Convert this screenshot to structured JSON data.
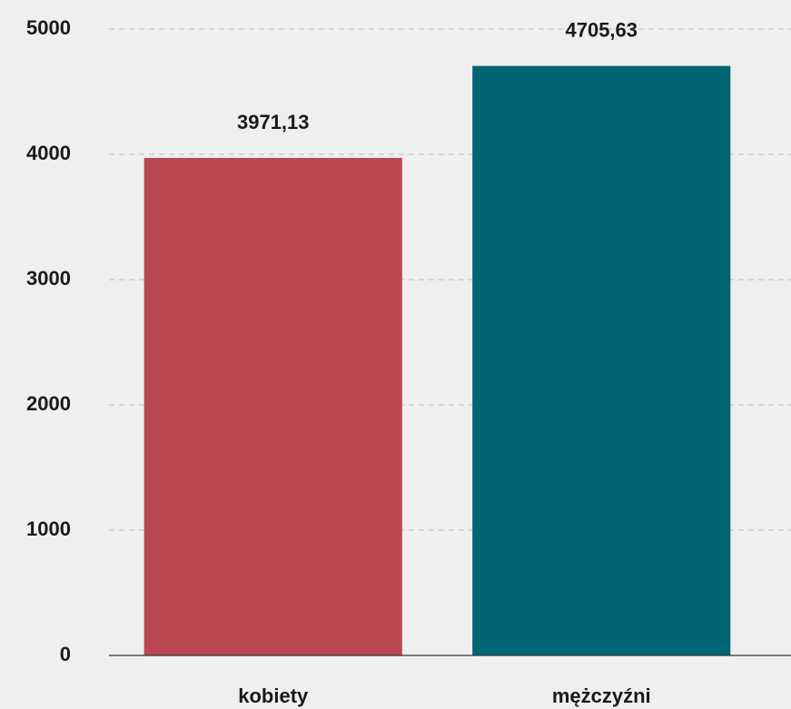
{
  "chart_data": {
    "type": "bar",
    "categories": [
      "kobiety",
      "mężczyźni"
    ],
    "values": [
      3971.13,
      4705.63
    ],
    "value_labels": [
      "3971,13",
      "4705,63"
    ],
    "colors": [
      "#bb4753",
      "#006674"
    ],
    "ylim": [
      0,
      5000
    ],
    "yticks": [
      0,
      1000,
      2000,
      3000,
      4000,
      5000
    ],
    "grid": true
  }
}
